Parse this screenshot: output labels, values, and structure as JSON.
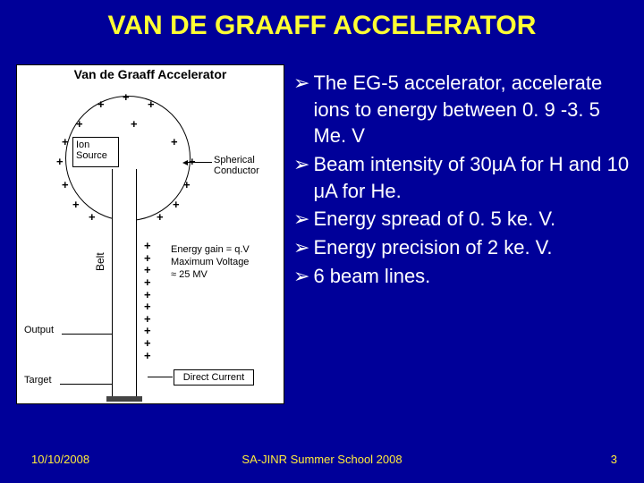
{
  "colors": {
    "background": "#000099",
    "title": "#ffff33",
    "text": "#ffffff",
    "footer": "#ffeb3b",
    "diagram_bg": "#ffffff",
    "diagram_fg": "#000000"
  },
  "title": "VAN DE GRAAFF ACCELERATOR",
  "diagram": {
    "title": "Van de Graaff Accelerator",
    "ion_source": "Ion\nSource",
    "belt": "Belt",
    "output": "Output",
    "target": "Target",
    "spherical_conductor": "Spherical\nConductor",
    "energy_gain": "Energy gain = q.V\nMaximum Voltage\n≈ 25 MV",
    "direct_current": "Direct Current",
    "plus": "+"
  },
  "bullets": [
    "The EG-5 accelerator, accelerate ions to energy between 0. 9 -3. 5 Me. V",
    "Beam intensity of 30μA for H and 10 μA for He.",
    "Energy spread of 0. 5 ke. V.",
    "Energy precision of 2 ke. V.",
    "6 beam lines."
  ],
  "bullet_marker": "➢",
  "footer": {
    "date": "10/10/2008",
    "center": "SA-JINR Summer School 2008",
    "page": "3"
  }
}
